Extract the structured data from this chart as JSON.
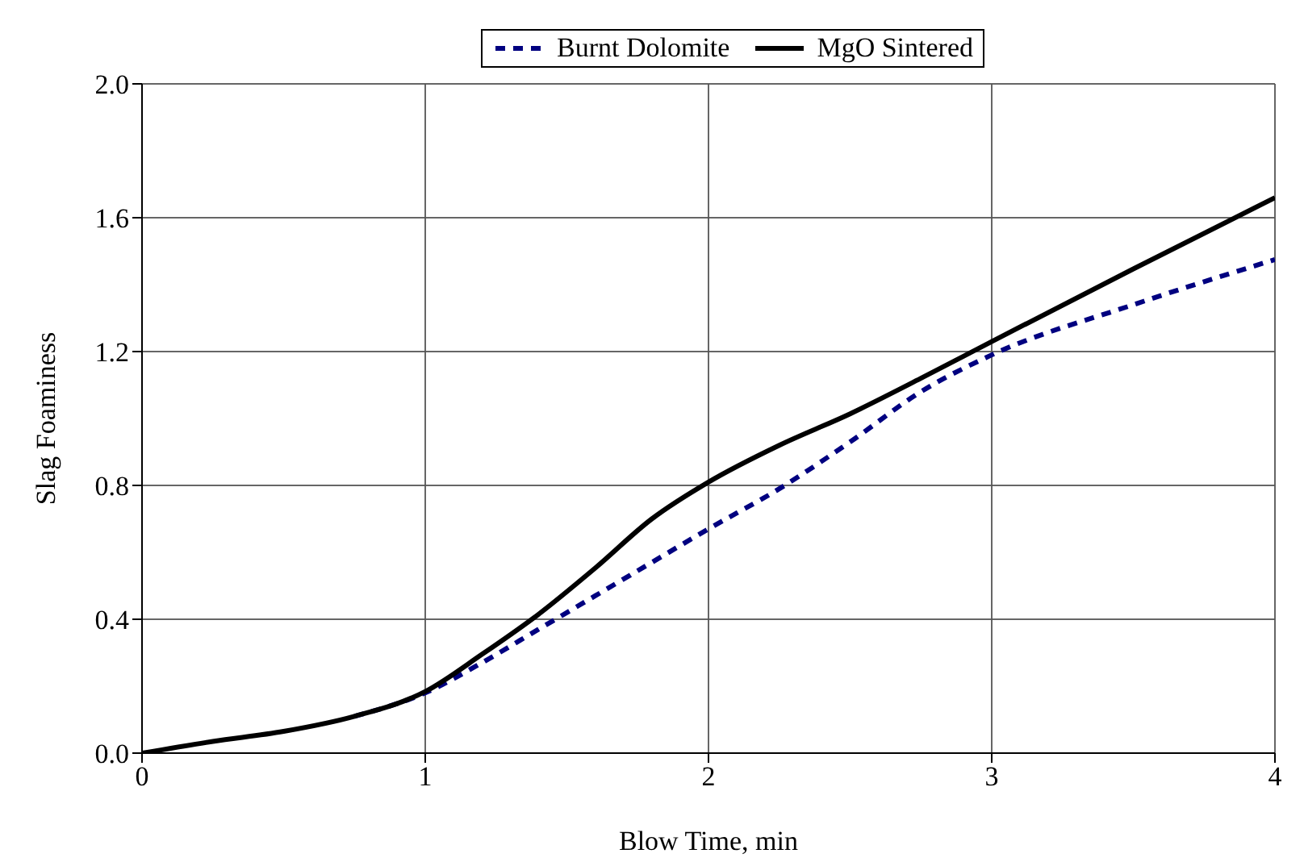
{
  "chart_data": {
    "type": "line",
    "xlabel": "Blow Time, min",
    "ylabel": "Slag Foaminess",
    "xlim": [
      0,
      4
    ],
    "xticks": [
      0,
      1,
      2,
      3,
      4
    ],
    "ylim": [
      0,
      2
    ],
    "yticks": [
      {
        "value": 0,
        "label": "0.0"
      },
      {
        "value": 0.4,
        "label": "0.4"
      },
      {
        "value": 0.8,
        "label": "0.8"
      },
      {
        "value": 1.2,
        "label": "1.2"
      },
      {
        "value": 1.6,
        "label": "1.6"
      },
      {
        "value": 2,
        "label": "2.0"
      }
    ],
    "grid": true,
    "legend": "top",
    "marker": "none",
    "series": [
      {
        "name": "Burnt Dolomite",
        "color": "#000080",
        "line_style": "dashed",
        "x": [
          0.75,
          1,
          1.2,
          1.4,
          1.6,
          1.8,
          2,
          2.25,
          2.5,
          2.75,
          3,
          3.5,
          4
        ],
        "values": [
          0.11,
          0.18,
          0.27,
          0.37,
          0.47,
          0.57,
          0.67,
          0.79,
          0.93,
          1.08,
          1.19,
          1.34,
          1.475
        ]
      },
      {
        "name": "MgO Sintered",
        "color": "#000000",
        "line_style": "solid",
        "x": [
          0,
          0.25,
          0.5,
          0.75,
          1,
          1.2,
          1.4,
          1.6,
          1.8,
          2,
          2.25,
          2.5,
          2.75,
          3,
          3.5,
          4
        ],
        "values": [
          0,
          0.035,
          0.065,
          0.11,
          0.184,
          0.295,
          0.415,
          0.553,
          0.7,
          0.81,
          0.92,
          1.014,
          1.12,
          1.23,
          1.447,
          1.66
        ]
      }
    ]
  }
}
